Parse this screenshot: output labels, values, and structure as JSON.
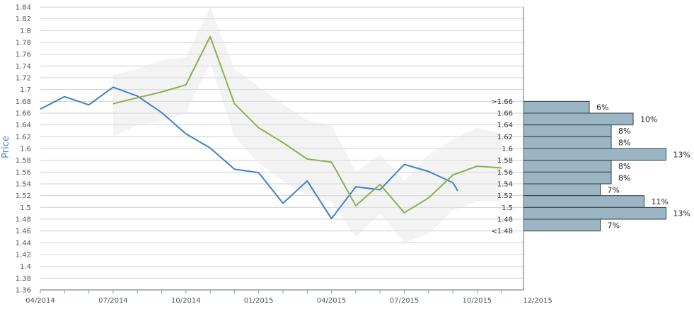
{
  "chart_data": {
    "type": "line",
    "ylabel": "Price",
    "ylim": [
      1.36,
      1.84
    ],
    "y_ticks": [
      "1.84",
      "1.82",
      "1.8",
      "1.78",
      "1.76",
      "1.74",
      "1.72",
      "1.7",
      "1.68",
      "1.66",
      "1.64",
      "1.62",
      "1.6",
      "1.58",
      "1.56",
      "1.54",
      "1.52",
      "1.5",
      "1.48",
      "1.46",
      "1.44",
      "1.42",
      "1.4",
      "1.38",
      "1.36"
    ],
    "x_ticks": [
      "04/2014",
      "07/2014",
      "10/2014",
      "01/2015",
      "04/2015",
      "07/2015",
      "10/2015",
      "12/2015"
    ],
    "series": [
      {
        "color": "#3f82c8",
        "points": [
          [
            0,
            1.667
          ],
          [
            1,
            1.688
          ],
          [
            2,
            1.674
          ],
          [
            3,
            1.704
          ],
          [
            4,
            1.689
          ],
          [
            5,
            1.661
          ],
          [
            6,
            1.625
          ],
          [
            7,
            1.601
          ],
          [
            8,
            1.565
          ],
          [
            9,
            1.559
          ],
          [
            10,
            1.507
          ],
          [
            11,
            1.545
          ],
          [
            12,
            1.481
          ],
          [
            13,
            1.535
          ],
          [
            14,
            1.53
          ],
          [
            15,
            1.573
          ],
          [
            16,
            1.561
          ],
          [
            17,
            1.542
          ],
          [
            17.2,
            1.528
          ]
        ]
      },
      {
        "color": "#8cb04f",
        "points": [
          [
            3,
            1.676
          ],
          [
            4,
            1.686
          ],
          [
            5,
            1.696
          ],
          [
            6,
            1.708
          ],
          [
            7,
            1.79
          ],
          [
            8,
            1.676
          ],
          [
            9,
            1.635
          ],
          [
            10,
            1.61
          ],
          [
            11,
            1.582
          ],
          [
            12,
            1.577
          ],
          [
            13,
            1.503
          ],
          [
            14,
            1.539
          ],
          [
            15,
            1.491
          ],
          [
            16,
            1.516
          ],
          [
            17,
            1.555
          ],
          [
            18,
            1.57
          ],
          [
            19,
            1.567
          ]
        ]
      }
    ],
    "band": {
      "color": "#e5e5e5",
      "upper": [
        [
          3,
          1.725
        ],
        [
          4,
          1.735
        ],
        [
          5,
          1.75
        ],
        [
          6,
          1.755
        ],
        [
          7,
          1.84
        ],
        [
          8,
          1.735
        ],
        [
          9,
          1.705
        ],
        [
          10,
          1.675
        ],
        [
          11,
          1.648
        ],
        [
          12,
          1.64
        ],
        [
          13,
          1.56
        ],
        [
          14,
          1.59
        ],
        [
          15,
          1.545
        ],
        [
          16,
          1.59
        ],
        [
          17,
          1.615
        ],
        [
          18,
          1.635
        ],
        [
          19,
          1.625
        ]
      ],
      "lower": [
        [
          3,
          1.62
        ],
        [
          4,
          1.64
        ],
        [
          5,
          1.645
        ],
        [
          6,
          1.66
        ],
        [
          7,
          1.745
        ],
        [
          8,
          1.62
        ],
        [
          9,
          1.575
        ],
        [
          10,
          1.545
        ],
        [
          11,
          1.52
        ],
        [
          12,
          1.51
        ],
        [
          13,
          1.45
        ],
        [
          14,
          1.49
        ],
        [
          15,
          1.44
        ],
        [
          16,
          1.455
        ],
        [
          17,
          1.495
        ],
        [
          18,
          1.51
        ],
        [
          19,
          1.51
        ]
      ]
    },
    "histogram": {
      "color": "#9bb5c3",
      "bins": [
        {
          "label": ">1.66",
          "pct": 6,
          "text": "6%"
        },
        {
          "label": "1.66",
          "pct": 10,
          "text": "10%"
        },
        {
          "label": "1.64",
          "pct": 8,
          "text": "8%"
        },
        {
          "label": "1.62",
          "pct": 8,
          "text": "8%"
        },
        {
          "label": "1.6",
          "pct": 13,
          "text": "13%"
        },
        {
          "label": "1.58",
          "pct": 8,
          "text": "8%"
        },
        {
          "label": "1.56",
          "pct": 8,
          "text": "8%"
        },
        {
          "label": "1.54",
          "pct": 7,
          "text": "7%"
        },
        {
          "label": "1.52",
          "pct": 11,
          "text": "11%"
        },
        {
          "label": "1.5",
          "pct": 13,
          "text": "13%"
        },
        {
          "label": "1.48",
          "pct": 7,
          "text": "7%"
        }
      ],
      "bin_labels": [
        ">1.66",
        "1.66",
        "1.64",
        "1.62",
        "1.6",
        "1.58",
        "1.56",
        "1.54",
        "1.52",
        "1.5",
        "1.48",
        "<1.48"
      ]
    },
    "grid": true,
    "legend": "none"
  }
}
